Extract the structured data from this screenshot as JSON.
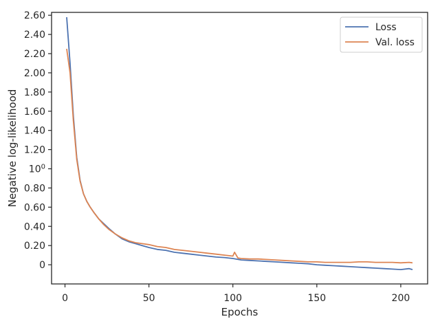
{
  "chart_data": {
    "type": "line",
    "xlabel": "Epochs",
    "ylabel": "Negative log-likelihood",
    "xlim": [
      -8,
      216
    ],
    "ylim": [
      -0.2,
      2.63
    ],
    "x_ticks": [
      {
        "value": 0,
        "label": "0"
      },
      {
        "value": 50,
        "label": "50"
      },
      {
        "value": 100,
        "label": "100"
      },
      {
        "value": 150,
        "label": "150"
      },
      {
        "value": 200,
        "label": "200"
      }
    ],
    "y_ticks": [
      {
        "value": 0.0,
        "label": "0"
      },
      {
        "value": 0.2,
        "label": "0.20"
      },
      {
        "value": 0.4,
        "label": "0.40"
      },
      {
        "value": 0.6,
        "label": "0.60"
      },
      {
        "value": 0.8,
        "label": "0.80"
      },
      {
        "value": 1.0,
        "label": "10",
        "sup": "0"
      },
      {
        "value": 1.2,
        "label": "1.20"
      },
      {
        "value": 1.4,
        "label": "1.40"
      },
      {
        "value": 1.6,
        "label": "1.60"
      },
      {
        "value": 1.8,
        "label": "1.80"
      },
      {
        "value": 2.0,
        "label": "2.00"
      },
      {
        "value": 2.2,
        "label": "2.20"
      },
      {
        "value": 2.4,
        "label": "2.40"
      },
      {
        "value": 2.6,
        "label": "2.60"
      }
    ],
    "legend_position": "top-right",
    "grid": false,
    "series": [
      {
        "name": "Loss",
        "color": "#4c72b0",
        "points": [
          [
            1,
            2.58
          ],
          [
            3,
            2.1
          ],
          [
            5,
            1.55
          ],
          [
            7,
            1.12
          ],
          [
            9,
            0.88
          ],
          [
            11,
            0.74
          ],
          [
            13,
            0.66
          ],
          [
            15,
            0.6
          ],
          [
            17,
            0.55
          ],
          [
            20,
            0.48
          ],
          [
            23,
            0.43
          ],
          [
            26,
            0.38
          ],
          [
            30,
            0.32
          ],
          [
            34,
            0.27
          ],
          [
            38,
            0.24
          ],
          [
            42,
            0.22
          ],
          [
            46,
            0.2
          ],
          [
            50,
            0.18
          ],
          [
            55,
            0.16
          ],
          [
            60,
            0.15
          ],
          [
            65,
            0.13
          ],
          [
            70,
            0.12
          ],
          [
            75,
            0.11
          ],
          [
            80,
            0.1
          ],
          [
            85,
            0.09
          ],
          [
            90,
            0.08
          ],
          [
            95,
            0.075
          ],
          [
            100,
            0.065
          ],
          [
            105,
            0.05
          ],
          [
            110,
            0.045
          ],
          [
            115,
            0.04
          ],
          [
            120,
            0.035
          ],
          [
            125,
            0.03
          ],
          [
            130,
            0.025
          ],
          [
            135,
            0.02
          ],
          [
            140,
            0.015
          ],
          [
            145,
            0.01
          ],
          [
            150,
            0.0
          ],
          [
            155,
            -0.005
          ],
          [
            160,
            -0.01
          ],
          [
            165,
            -0.015
          ],
          [
            170,
            -0.02
          ],
          [
            175,
            -0.025
          ],
          [
            180,
            -0.03
          ],
          [
            185,
            -0.035
          ],
          [
            190,
            -0.04
          ],
          [
            195,
            -0.045
          ],
          [
            200,
            -0.05
          ],
          [
            205,
            -0.04
          ],
          [
            207,
            -0.05
          ]
        ]
      },
      {
        "name": "Val. loss",
        "color": "#dd8452",
        "points": [
          [
            1,
            2.25
          ],
          [
            3,
            2.0
          ],
          [
            5,
            1.5
          ],
          [
            7,
            1.1
          ],
          [
            9,
            0.87
          ],
          [
            11,
            0.74
          ],
          [
            13,
            0.66
          ],
          [
            15,
            0.6
          ],
          [
            17,
            0.55
          ],
          [
            20,
            0.48
          ],
          [
            23,
            0.42
          ],
          [
            26,
            0.37
          ],
          [
            30,
            0.32
          ],
          [
            34,
            0.28
          ],
          [
            38,
            0.25
          ],
          [
            42,
            0.23
          ],
          [
            46,
            0.22
          ],
          [
            50,
            0.21
          ],
          [
            55,
            0.19
          ],
          [
            60,
            0.18
          ],
          [
            65,
            0.16
          ],
          [
            70,
            0.15
          ],
          [
            75,
            0.14
          ],
          [
            80,
            0.13
          ],
          [
            85,
            0.12
          ],
          [
            90,
            0.11
          ],
          [
            95,
            0.1
          ],
          [
            100,
            0.09
          ],
          [
            101,
            0.13
          ],
          [
            103,
            0.07
          ],
          [
            105,
            0.065
          ],
          [
            110,
            0.06
          ],
          [
            115,
            0.06
          ],
          [
            120,
            0.055
          ],
          [
            125,
            0.05
          ],
          [
            130,
            0.045
          ],
          [
            135,
            0.04
          ],
          [
            140,
            0.035
          ],
          [
            145,
            0.03
          ],
          [
            150,
            0.03
          ],
          [
            155,
            0.025
          ],
          [
            160,
            0.025
          ],
          [
            165,
            0.025
          ],
          [
            170,
            0.025
          ],
          [
            175,
            0.03
          ],
          [
            180,
            0.03
          ],
          [
            185,
            0.025
          ],
          [
            190,
            0.025
          ],
          [
            195,
            0.025
          ],
          [
            200,
            0.02
          ],
          [
            205,
            0.025
          ],
          [
            207,
            0.02
          ]
        ]
      }
    ]
  }
}
